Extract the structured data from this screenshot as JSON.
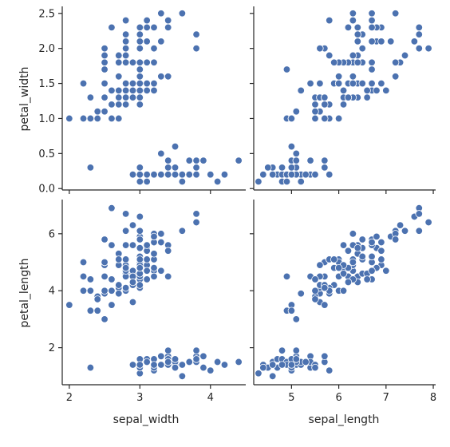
{
  "chart_data": {
    "type": "scatter",
    "layout": "pairgrid",
    "grid": false,
    "point_color": "#4c72b0",
    "x_vars": [
      {
        "name": "sepal_width",
        "label": "sepal_width",
        "lim": [
          1.9,
          4.5
        ],
        "ticks": [
          2,
          3,
          4
        ]
      },
      {
        "name": "sepal_length",
        "label": "sepal_length",
        "lim": [
          4.2,
          8.05
        ],
        "ticks": [
          5,
          6,
          7,
          8
        ]
      }
    ],
    "y_vars": [
      {
        "name": "petal_width",
        "label": "petal_width",
        "lim": [
          -0.02,
          2.6
        ],
        "ticks": [
          0.0,
          0.5,
          1.0,
          1.5,
          2.0,
          2.5
        ],
        "tick_labels": [
          "0.0",
          "0.5",
          "1.0",
          "1.5",
          "2.0",
          "2.5"
        ]
      },
      {
        "name": "petal_length",
        "label": "petal_length",
        "lim": [
          0.7,
          7.2
        ],
        "ticks": [
          2,
          4,
          6
        ],
        "tick_labels": [
          "2",
          "4",
          "6"
        ]
      }
    ],
    "points": {
      "columns": [
        "sepal_length",
        "sepal_width",
        "petal_length",
        "petal_width"
      ],
      "rows": [
        [
          5.1,
          3.5,
          1.4,
          0.2
        ],
        [
          4.9,
          3.0,
          1.4,
          0.2
        ],
        [
          4.7,
          3.2,
          1.3,
          0.2
        ],
        [
          4.6,
          3.1,
          1.5,
          0.2
        ],
        [
          5.0,
          3.6,
          1.4,
          0.2
        ],
        [
          5.4,
          3.9,
          1.7,
          0.4
        ],
        [
          4.6,
          3.4,
          1.4,
          0.3
        ],
        [
          5.0,
          3.4,
          1.5,
          0.2
        ],
        [
          4.4,
          2.9,
          1.4,
          0.2
        ],
        [
          4.9,
          3.1,
          1.5,
          0.1
        ],
        [
          5.4,
          3.7,
          1.5,
          0.2
        ],
        [
          4.8,
          3.4,
          1.6,
          0.2
        ],
        [
          4.8,
          3.0,
          1.4,
          0.1
        ],
        [
          4.3,
          3.0,
          1.1,
          0.1
        ],
        [
          5.8,
          4.0,
          1.2,
          0.2
        ],
        [
          5.7,
          4.4,
          1.5,
          0.4
        ],
        [
          5.4,
          3.9,
          1.3,
          0.4
        ],
        [
          5.1,
          3.5,
          1.4,
          0.3
        ],
        [
          5.7,
          3.8,
          1.7,
          0.3
        ],
        [
          5.1,
          3.8,
          1.5,
          0.3
        ],
        [
          5.4,
          3.4,
          1.7,
          0.2
        ],
        [
          5.1,
          3.7,
          1.5,
          0.4
        ],
        [
          4.6,
          3.6,
          1.0,
          0.2
        ],
        [
          5.1,
          3.3,
          1.7,
          0.5
        ],
        [
          4.8,
          3.4,
          1.9,
          0.2
        ],
        [
          5.0,
          3.0,
          1.6,
          0.2
        ],
        [
          5.0,
          3.4,
          1.6,
          0.4
        ],
        [
          5.2,
          3.5,
          1.5,
          0.2
        ],
        [
          5.2,
          3.4,
          1.4,
          0.2
        ],
        [
          4.7,
          3.2,
          1.6,
          0.2
        ],
        [
          4.8,
          3.1,
          1.6,
          0.2
        ],
        [
          5.4,
          3.4,
          1.5,
          0.4
        ],
        [
          5.2,
          4.1,
          1.5,
          0.1
        ],
        [
          5.5,
          4.2,
          1.4,
          0.2
        ],
        [
          4.9,
          3.1,
          1.5,
          0.2
        ],
        [
          5.0,
          3.2,
          1.2,
          0.2
        ],
        [
          5.5,
          3.5,
          1.3,
          0.2
        ],
        [
          4.9,
          3.6,
          1.4,
          0.1
        ],
        [
          4.4,
          3.0,
          1.3,
          0.2
        ],
        [
          5.1,
          3.4,
          1.5,
          0.2
        ],
        [
          5.0,
          3.5,
          1.3,
          0.3
        ],
        [
          4.5,
          2.3,
          1.3,
          0.3
        ],
        [
          4.4,
          3.2,
          1.3,
          0.2
        ],
        [
          5.0,
          3.5,
          1.6,
          0.6
        ],
        [
          5.1,
          3.8,
          1.9,
          0.4
        ],
        [
          4.8,
          3.0,
          1.4,
          0.3
        ],
        [
          5.1,
          3.8,
          1.6,
          0.2
        ],
        [
          4.6,
          3.2,
          1.4,
          0.2
        ],
        [
          5.3,
          3.7,
          1.5,
          0.2
        ],
        [
          5.0,
          3.3,
          1.4,
          0.2
        ],
        [
          7.0,
          3.2,
          4.7,
          1.4
        ],
        [
          6.4,
          3.2,
          4.5,
          1.5
        ],
        [
          6.9,
          3.1,
          4.9,
          1.5
        ],
        [
          5.5,
          2.3,
          4.0,
          1.3
        ],
        [
          6.5,
          2.8,
          4.6,
          1.5
        ],
        [
          5.7,
          2.8,
          4.5,
          1.3
        ],
        [
          6.3,
          3.3,
          4.7,
          1.6
        ],
        [
          4.9,
          2.4,
          3.3,
          1.0
        ],
        [
          6.6,
          2.9,
          4.6,
          1.3
        ],
        [
          5.2,
          2.7,
          3.9,
          1.4
        ],
        [
          5.0,
          2.0,
          3.5,
          1.0
        ],
        [
          5.9,
          3.0,
          4.2,
          1.5
        ],
        [
          6.0,
          2.2,
          4.0,
          1.0
        ],
        [
          6.1,
          2.9,
          4.7,
          1.4
        ],
        [
          5.6,
          2.9,
          3.6,
          1.3
        ],
        [
          6.7,
          3.1,
          4.4,
          1.4
        ],
        [
          5.6,
          3.0,
          4.5,
          1.5
        ],
        [
          5.8,
          2.7,
          4.1,
          1.0
        ],
        [
          6.2,
          2.2,
          4.5,
          1.5
        ],
        [
          5.6,
          2.5,
          3.9,
          1.1
        ],
        [
          5.9,
          3.2,
          4.8,
          1.8
        ],
        [
          6.1,
          2.8,
          4.0,
          1.3
        ],
        [
          6.3,
          2.5,
          4.9,
          1.5
        ],
        [
          6.1,
          2.8,
          4.7,
          1.2
        ],
        [
          6.4,
          2.9,
          4.3,
          1.3
        ],
        [
          6.6,
          3.0,
          4.4,
          1.4
        ],
        [
          6.8,
          2.8,
          4.8,
          1.4
        ],
        [
          6.7,
          3.0,
          5.0,
          1.7
        ],
        [
          6.0,
          2.9,
          4.5,
          1.5
        ],
        [
          5.7,
          2.6,
          3.5,
          1.0
        ],
        [
          5.5,
          2.4,
          3.8,
          1.1
        ],
        [
          5.5,
          2.4,
          3.7,
          1.0
        ],
        [
          5.8,
          2.7,
          3.9,
          1.2
        ],
        [
          6.0,
          2.7,
          5.1,
          1.6
        ],
        [
          5.4,
          3.0,
          4.5,
          1.5
        ],
        [
          6.0,
          3.4,
          4.5,
          1.6
        ],
        [
          6.7,
          3.1,
          4.7,
          1.5
        ],
        [
          6.3,
          2.3,
          4.4,
          1.3
        ],
        [
          5.6,
          3.0,
          4.1,
          1.3
        ],
        [
          5.5,
          2.5,
          4.0,
          1.3
        ],
        [
          5.5,
          2.6,
          4.4,
          1.2
        ],
        [
          6.1,
          3.0,
          4.6,
          1.4
        ],
        [
          5.8,
          2.6,
          4.0,
          1.2
        ],
        [
          5.0,
          2.3,
          3.3,
          1.0
        ],
        [
          5.6,
          2.7,
          4.2,
          1.3
        ],
        [
          5.7,
          3.0,
          4.2,
          1.2
        ],
        [
          5.7,
          2.9,
          4.2,
          1.3
        ],
        [
          6.2,
          2.9,
          4.3,
          1.3
        ],
        [
          5.1,
          2.5,
          3.0,
          1.1
        ],
        [
          5.7,
          2.8,
          4.1,
          1.3
        ],
        [
          6.3,
          3.3,
          6.0,
          2.5
        ],
        [
          5.8,
          2.7,
          5.1,
          1.9
        ],
        [
          7.1,
          3.0,
          5.9,
          2.1
        ],
        [
          6.3,
          2.9,
          5.6,
          1.8
        ],
        [
          6.5,
          3.0,
          5.8,
          2.2
        ],
        [
          7.6,
          3.0,
          6.6,
          2.1
        ],
        [
          4.9,
          2.5,
          4.5,
          1.7
        ],
        [
          7.3,
          2.9,
          6.3,
          1.8
        ],
        [
          6.7,
          2.5,
          5.8,
          1.8
        ],
        [
          7.2,
          3.6,
          6.1,
          2.5
        ],
        [
          6.5,
          3.2,
          5.1,
          2.0
        ],
        [
          6.4,
          2.7,
          5.3,
          1.9
        ],
        [
          6.8,
          3.0,
          5.5,
          2.1
        ],
        [
          5.7,
          2.5,
          5.0,
          2.0
        ],
        [
          5.8,
          2.8,
          5.1,
          2.4
        ],
        [
          6.4,
          3.2,
          5.3,
          2.3
        ],
        [
          6.5,
          3.0,
          5.5,
          1.8
        ],
        [
          7.7,
          3.8,
          6.7,
          2.2
        ],
        [
          7.7,
          2.6,
          6.9,
          2.3
        ],
        [
          6.0,
          2.2,
          5.0,
          1.5
        ],
        [
          6.9,
          3.2,
          5.7,
          2.3
        ],
        [
          5.6,
          2.8,
          4.9,
          2.0
        ],
        [
          7.7,
          2.8,
          6.7,
          2.0
        ],
        [
          6.3,
          2.7,
          4.9,
          1.8
        ],
        [
          6.7,
          3.3,
          5.7,
          2.1
        ],
        [
          7.2,
          3.2,
          6.0,
          1.8
        ],
        [
          6.2,
          2.8,
          4.8,
          1.8
        ],
        [
          6.1,
          3.0,
          4.9,
          1.8
        ],
        [
          6.4,
          2.8,
          5.6,
          2.1
        ],
        [
          7.2,
          3.0,
          5.8,
          1.6
        ],
        [
          7.4,
          2.8,
          6.1,
          1.9
        ],
        [
          7.9,
          3.8,
          6.4,
          2.0
        ],
        [
          6.4,
          2.8,
          5.6,
          2.2
        ],
        [
          6.3,
          2.8,
          5.1,
          1.5
        ],
        [
          6.1,
          2.6,
          5.6,
          1.4
        ],
        [
          7.7,
          3.0,
          6.1,
          2.3
        ],
        [
          6.3,
          3.4,
          5.6,
          2.4
        ],
        [
          6.4,
          3.1,
          5.5,
          1.8
        ],
        [
          6.0,
          3.0,
          4.8,
          1.8
        ],
        [
          6.9,
          3.1,
          5.4,
          2.1
        ],
        [
          6.7,
          3.1,
          5.6,
          2.4
        ],
        [
          6.9,
          3.1,
          5.1,
          2.3
        ],
        [
          5.8,
          2.7,
          5.1,
          1.9
        ],
        [
          6.8,
          3.2,
          5.9,
          2.3
        ],
        [
          6.7,
          3.3,
          5.7,
          2.5
        ],
        [
          6.7,
          3.0,
          5.2,
          2.3
        ],
        [
          6.3,
          2.5,
          5.0,
          1.9
        ],
        [
          6.5,
          3.0,
          5.2,
          2.0
        ],
        [
          6.2,
          3.4,
          5.4,
          2.3
        ],
        [
          5.9,
          3.0,
          5.1,
          1.8
        ]
      ]
    }
  }
}
